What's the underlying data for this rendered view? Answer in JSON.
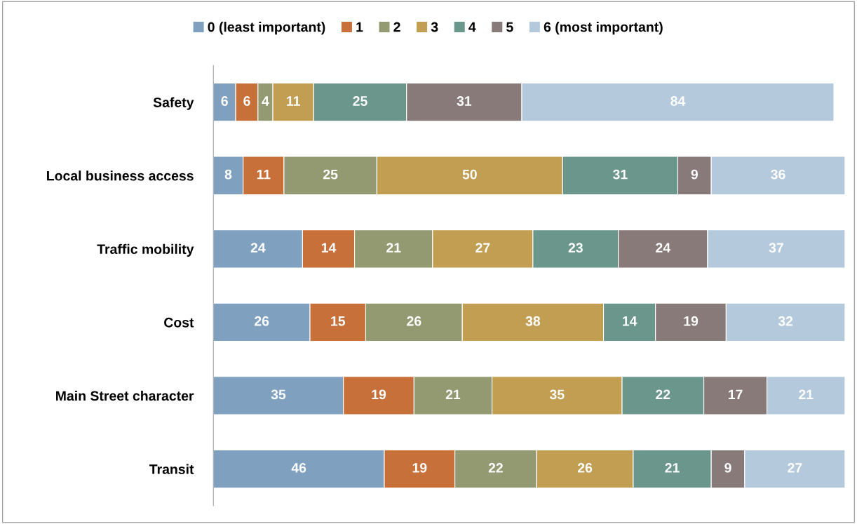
{
  "chart_data": {
    "type": "bar",
    "orientation": "horizontal",
    "stacked": true,
    "data_labels": true,
    "legend": "top",
    "tick_labels": "y",
    "grid": false,
    "categories": [
      "Safety",
      "Local business access",
      "Traffic mobility",
      "Cost",
      "Main Street character",
      "Transit"
    ],
    "series": [
      {
        "name": "0 (least important)",
        "color": "#7fa1bf",
        "values": [
          6,
          8,
          24,
          26,
          35,
          46
        ]
      },
      {
        "name": "1",
        "color": "#c8703a",
        "values": [
          6,
          11,
          14,
          15,
          19,
          19
        ]
      },
      {
        "name": "2",
        "color": "#939a72",
        "values": [
          4,
          25,
          21,
          26,
          21,
          22
        ]
      },
      {
        "name": "3",
        "color": "#c19e51",
        "values": [
          11,
          50,
          27,
          38,
          35,
          26
        ]
      },
      {
        "name": "4",
        "color": "#6a968b",
        "values": [
          25,
          31,
          23,
          14,
          22,
          21
        ]
      },
      {
        "name": "5",
        "color": "#877a78",
        "values": [
          31,
          9,
          24,
          19,
          17,
          9
        ]
      },
      {
        "name": "6 (most important)",
        "color": "#b4c9dc",
        "values": [
          84,
          36,
          37,
          32,
          21,
          27
        ]
      }
    ]
  }
}
